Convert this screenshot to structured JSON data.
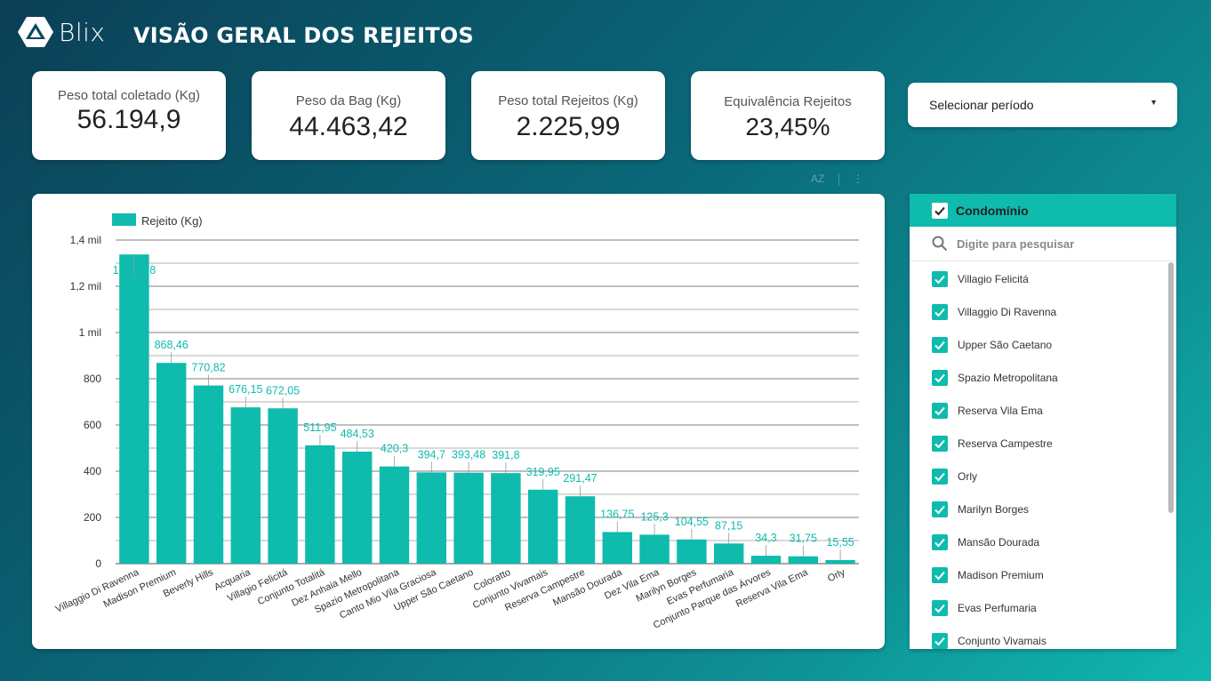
{
  "header": {
    "logo_text": "Blix",
    "title": "VISÃO GERAL DOS REJEITOS"
  },
  "kpis": [
    {
      "label": "Peso total coletado (Kg)",
      "value": "56.194,9"
    },
    {
      "label": "Peso da Bag (Kg)",
      "value": "44.463,42"
    },
    {
      "label": "Peso total Rejeitos (Kg)",
      "value": "2.225,99"
    },
    {
      "label": "Equivalência Rejeitos",
      "value": "23,45%"
    }
  ],
  "period_select": {
    "label": "Selecionar período",
    "icon": "caret-down-icon"
  },
  "chart_tools": {
    "sort_label": "AZ",
    "more_icon": "more-vert-icon"
  },
  "chart_data": {
    "type": "bar",
    "legend": "Rejeito (Kg)",
    "legend_position": "top-left",
    "color": "#0fbbad",
    "categories": [
      "Villaggio Di Ravenna",
      "Madison Premium",
      "Beverly Hills",
      "Acquaria",
      "Villagio Felicitá",
      "Conjunto Totalitá",
      "Dez Anhaia Mello",
      "Spazio Metropolitana",
      "Canto Mio Vila Graciosa",
      "Upper São Caetano",
      "Coloratto",
      "Conjunto Vivamais",
      "Reserva Campestre",
      "Mansão Dourada",
      "Dez Vila Ema",
      "Marilyn Borges",
      "Evas Perfumaria",
      "Conjunto Parque das Árvores",
      "Reserva Vila Ema",
      "Orly"
    ],
    "values": [
      1337.78,
      868.46,
      770.82,
      676.15,
      672.05,
      511.95,
      484.53,
      420.3,
      394.7,
      393.48,
      391.8,
      319.95,
      291.47,
      136.75,
      125.3,
      104.55,
      87.15,
      34.3,
      31.75,
      15.55
    ],
    "value_labels": [
      "1.337,78",
      "868,46",
      "770,82",
      "676,15",
      "672,05",
      "511,95",
      "484,53",
      "420,3",
      "394,7",
      "393,48",
      "391,8",
      "319,95",
      "291,47",
      "136,75",
      "125,3",
      "104,55",
      "87,15",
      "34,3",
      "31,75",
      "15,55"
    ],
    "ylim": [
      0,
      1400
    ],
    "yticks": [
      0,
      200,
      400,
      600,
      800,
      1000,
      1200,
      1400
    ],
    "ytick_labels": [
      "0",
      "200",
      "400",
      "600",
      "800",
      "1 mil",
      "1,2 mil",
      "1,4 mil"
    ],
    "grid": true
  },
  "filter": {
    "header": "Condomínio",
    "search_placeholder": "Digite para pesquisar",
    "items": [
      "Villagio Felicitá",
      "Villaggio Di Ravenna",
      "Upper São Caetano",
      "Spazio Metropolitana",
      "Reserva Vila Ema",
      "Reserva Campestre",
      "Orly",
      "Marilyn Borges",
      "Mansão Dourada",
      "Madison Premium",
      "Evas Perfumaria",
      "Conjunto Vivamais"
    ]
  }
}
